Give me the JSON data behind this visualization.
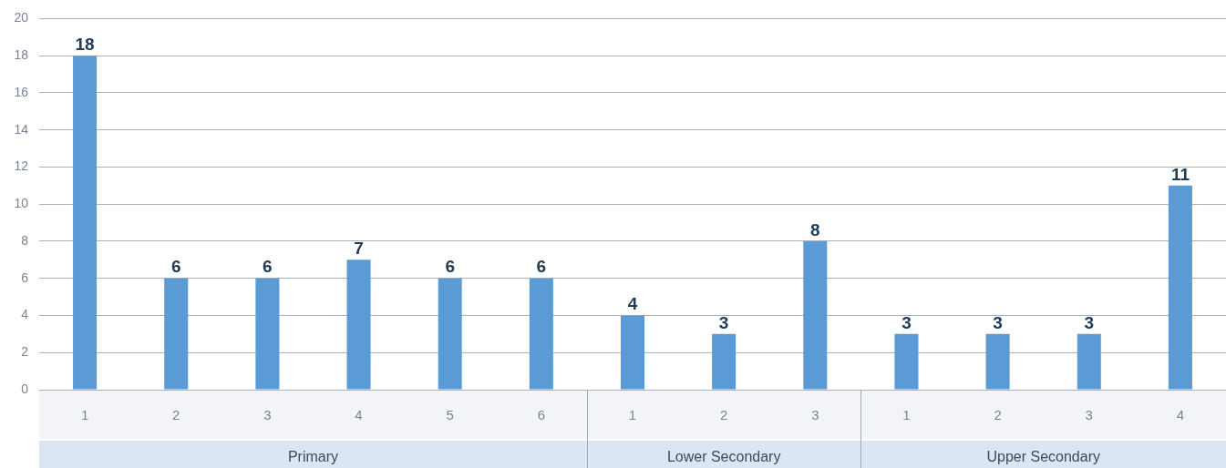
{
  "chart_data": {
    "type": "bar",
    "categories": [
      "1",
      "2",
      "3",
      "4",
      "5",
      "6",
      "1",
      "2",
      "3",
      "1",
      "2",
      "3",
      "4"
    ],
    "values": [
      18,
      6,
      6,
      7,
      6,
      6,
      4,
      3,
      8,
      3,
      3,
      3,
      11
    ],
    "color": "#5b9bd5",
    "ylim": [
      0,
      20
    ],
    "yticks": [
      0,
      2,
      4,
      6,
      8,
      10,
      12,
      14,
      16,
      18,
      20
    ],
    "grid": "y",
    "data_labels": true,
    "legend": false,
    "annotations": [
      "Primary",
      "Lower Secondary",
      "Upper Secondary"
    ]
  }
}
